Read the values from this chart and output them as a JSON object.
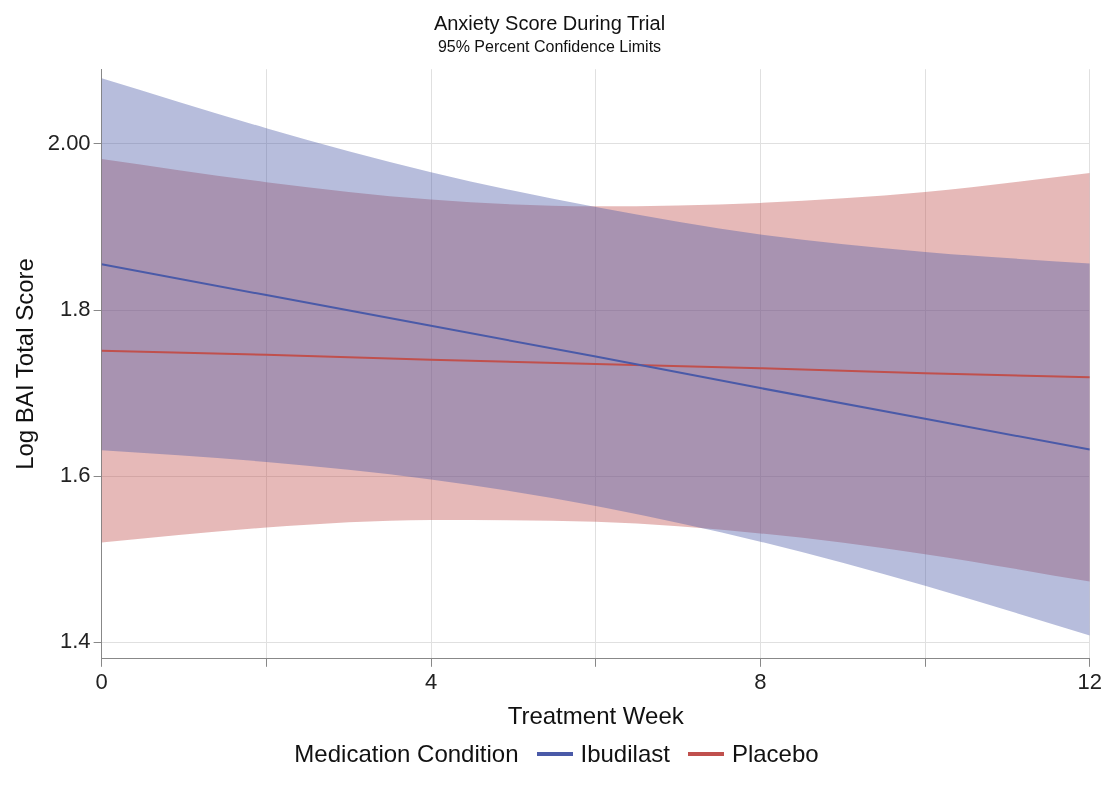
{
  "chart_data": {
    "type": "line",
    "title": "Anxiety Score During Trial",
    "subtitle": "95% Percent Confidence Limits",
    "xlabel": "Treatment Week",
    "ylabel": "Log BAI Total Score",
    "legend_title": "Medication Condition",
    "legend": "bottom",
    "grid": true,
    "marker": "none",
    "line_style": "solid",
    "x": [
      0,
      2,
      4,
      6,
      8,
      10,
      12
    ],
    "xlim": [
      0,
      12
    ],
    "xticks": [
      0,
      {
        "value": 2,
        "label": null
      },
      4,
      {
        "value": 6,
        "label": null
      },
      8,
      {
        "value": 10,
        "label": null
      },
      12
    ],
    "ylim": [
      1.38,
      2.09
    ],
    "yticks": [
      1.4,
      1.6,
      1.8,
      {
        "value": 2,
        "label": "2.00"
      }
    ],
    "series": [
      {
        "name": "Ibudilast",
        "color": "#4a5aa8",
        "values": [
          1.855,
          1.818,
          1.781,
          1.744,
          1.706,
          1.669,
          1.632
        ],
        "lower": [
          1.631,
          1.617,
          1.596,
          1.564,
          1.521,
          1.468,
          1.408
        ],
        "upper": [
          2.079,
          2.019,
          1.966,
          1.924,
          1.891,
          1.87,
          1.856
        ]
      },
      {
        "name": "Placebo",
        "color": "#c0504d",
        "values": [
          1.751,
          1.746,
          1.74,
          1.735,
          1.73,
          1.724,
          1.719
        ],
        "lower": [
          1.52,
          1.538,
          1.547,
          1.545,
          1.531,
          1.506,
          1.473
        ],
        "upper": [
          1.982,
          1.954,
          1.933,
          1.925,
          1.929,
          1.942,
          1.965
        ]
      }
    ]
  }
}
